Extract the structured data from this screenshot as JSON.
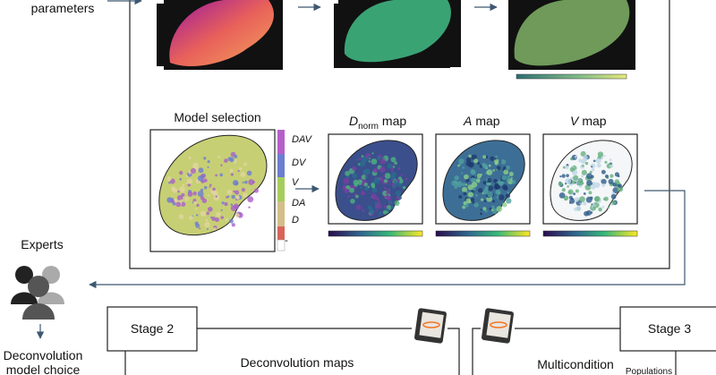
{
  "input": {
    "label": "parameters"
  },
  "model_selection": {
    "title": "Model selection",
    "legend": [
      "DAV",
      "DV",
      "V",
      "DA",
      "D",
      "-"
    ]
  },
  "maps": [
    {
      "symbol": "D",
      "subscript": "norm",
      "suffix": "map"
    },
    {
      "symbol": "A",
      "suffix": "map"
    },
    {
      "symbol": "V",
      "suffix": "map"
    }
  ],
  "experts": {
    "label": "Experts",
    "choice": [
      "Deconvolution",
      "model choice"
    ]
  },
  "stages": [
    {
      "label": "Stage 2"
    },
    {
      "label": "Stage 3"
    }
  ],
  "outputs": {
    "deconvolution": "Deconvolution maps",
    "multicondition": "Multicondition",
    "populations": "Populations"
  }
}
